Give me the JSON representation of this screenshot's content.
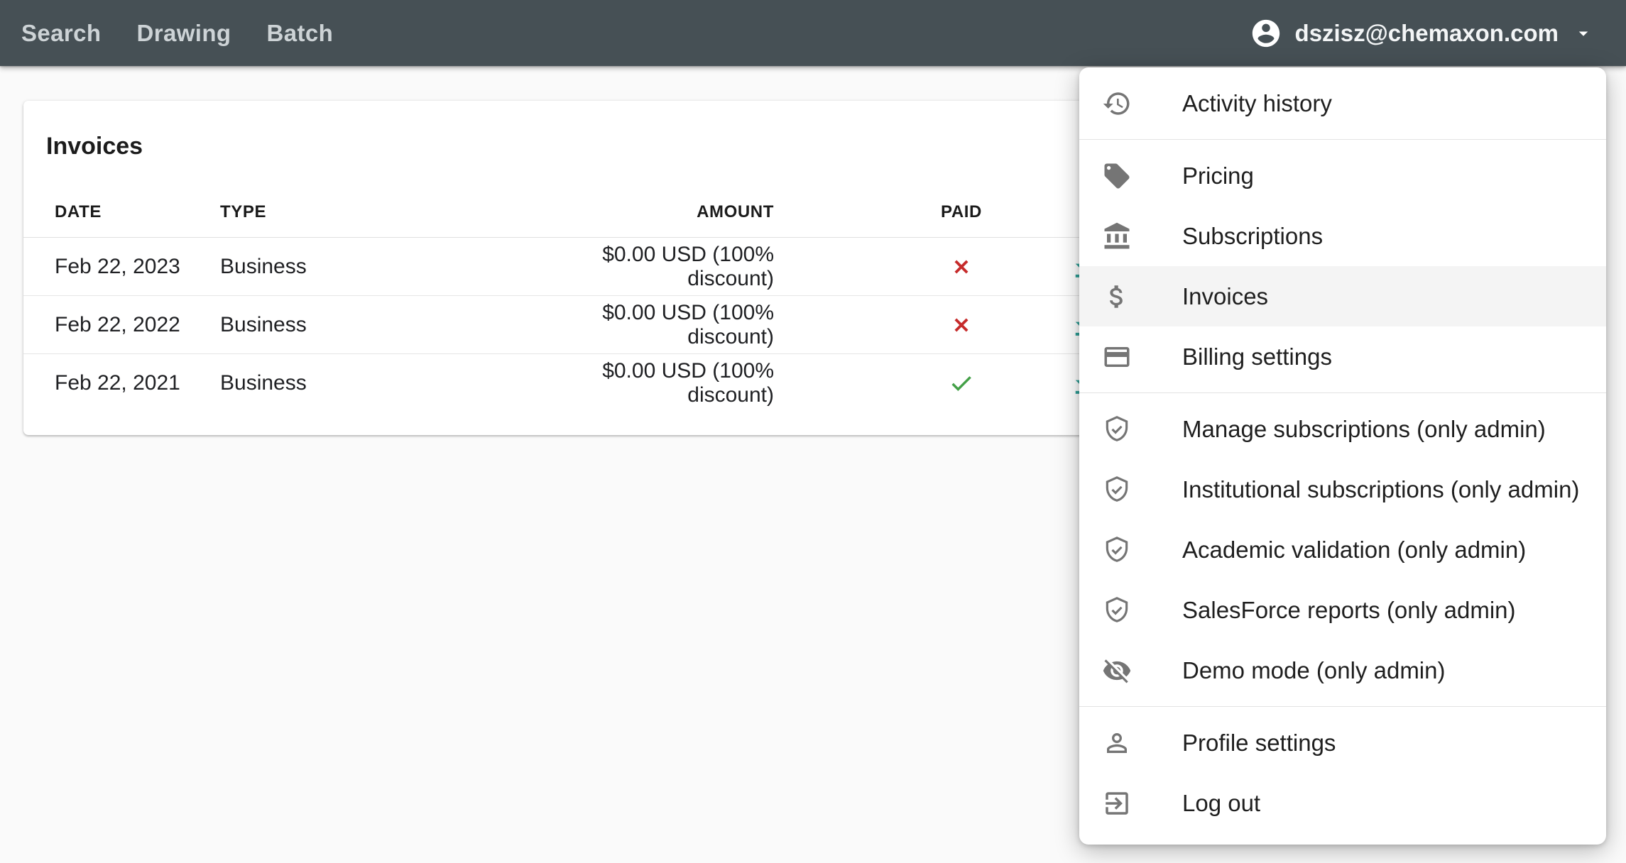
{
  "topbar": {
    "nav": [
      {
        "label": "Search"
      },
      {
        "label": "Drawing"
      },
      {
        "label": "Batch"
      }
    ],
    "user_email": "dszisz@chemaxon.com"
  },
  "invoices_card": {
    "title": "Invoices",
    "columns": [
      "DATE",
      "TYPE",
      "AMOUNT",
      "PAID"
    ],
    "rows": [
      {
        "date": "Feb 22, 2023",
        "type": "Business",
        "amount": "$0.00 USD (100% discount)",
        "paid": false
      },
      {
        "date": "Feb 22, 2022",
        "type": "Business",
        "amount": "$0.00 USD (100% discount)",
        "paid": false
      },
      {
        "date": "Feb 22, 2021",
        "type": "Business",
        "amount": "$0.00 USD (100% discount)",
        "paid": true
      }
    ],
    "row_action_icon": "download-icon"
  },
  "menu": {
    "sections": [
      {
        "items": [
          {
            "icon": "history-icon",
            "label": "Activity history",
            "selected": false
          }
        ]
      },
      {
        "items": [
          {
            "icon": "tag-icon",
            "label": "Pricing",
            "selected": false
          },
          {
            "icon": "bank-icon",
            "label": "Subscriptions",
            "selected": false
          },
          {
            "icon": "dollar-icon",
            "label": "Invoices",
            "selected": true
          },
          {
            "icon": "credit-card-icon",
            "label": "Billing settings",
            "selected": false
          }
        ]
      },
      {
        "items": [
          {
            "icon": "shield-check-icon",
            "label": "Manage subscriptions (only admin)",
            "selected": false
          },
          {
            "icon": "shield-check-icon",
            "label": "Institutional subscriptions (only admin)",
            "selected": false
          },
          {
            "icon": "shield-check-icon",
            "label": "Academic validation (only admin)",
            "selected": false
          },
          {
            "icon": "shield-check-icon",
            "label": "SalesForce reports (only admin)",
            "selected": false
          },
          {
            "icon": "eye-off-icon",
            "label": "Demo mode (only admin)",
            "selected": false
          }
        ]
      },
      {
        "items": [
          {
            "icon": "person-icon",
            "label": "Profile settings",
            "selected": false
          },
          {
            "icon": "exit-icon",
            "label": "Log out",
            "selected": false
          }
        ]
      }
    ]
  },
  "colors": {
    "topbar_bg": "#465055",
    "page_bg": "#fafafa",
    "accent_teal": "#2fa198",
    "unpaid_red": "#c62b2b",
    "paid_green": "#43a047",
    "menu_icon_gray": "#757575"
  }
}
